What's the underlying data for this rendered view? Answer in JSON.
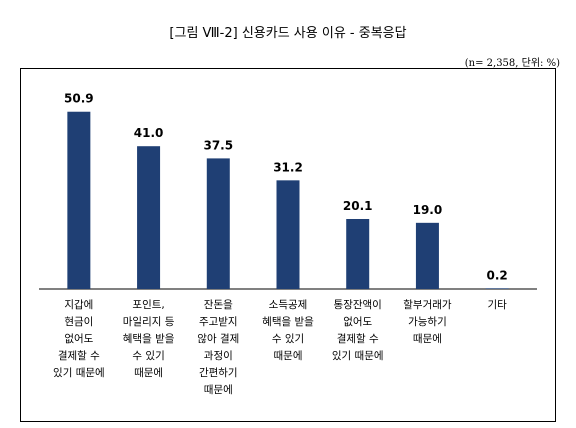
{
  "chart_data": {
    "type": "bar",
    "title": "[그림 Ⅷ-2] 신용카드 사용 이유 - 중복응답",
    "note": "(n= 2,358, 단위: %)",
    "categories": [
      [
        "지갑에",
        "현금이",
        "없어도",
        "결제할 수",
        "있기 때문에"
      ],
      [
        "포인트,",
        "마일리지 등",
        "혜택을 받을",
        "수 있기",
        "때문에"
      ],
      [
        "잔돈을",
        "주고받지",
        "않아 결제",
        "과정이",
        "간편하기",
        "때문에"
      ],
      [
        "소득공제",
        "혜택을 받을",
        "수 있기",
        "때문에"
      ],
      [
        "통장잔액이",
        "없어도",
        "결제할 수",
        "있기 때문에"
      ],
      [
        "할부거래가",
        "가능하기",
        "때문에"
      ],
      [
        "기타"
      ]
    ],
    "values": [
      50.9,
      41.0,
      37.5,
      31.2,
      20.1,
      19.0,
      0.2
    ],
    "value_labels": [
      "50.9",
      "41.0",
      "37.5",
      "31.2",
      "20.1",
      "19.0",
      "0.2"
    ],
    "ylim": [
      0,
      58
    ],
    "bar_color": "#1f3f74",
    "grid": false,
    "legend": "none"
  }
}
